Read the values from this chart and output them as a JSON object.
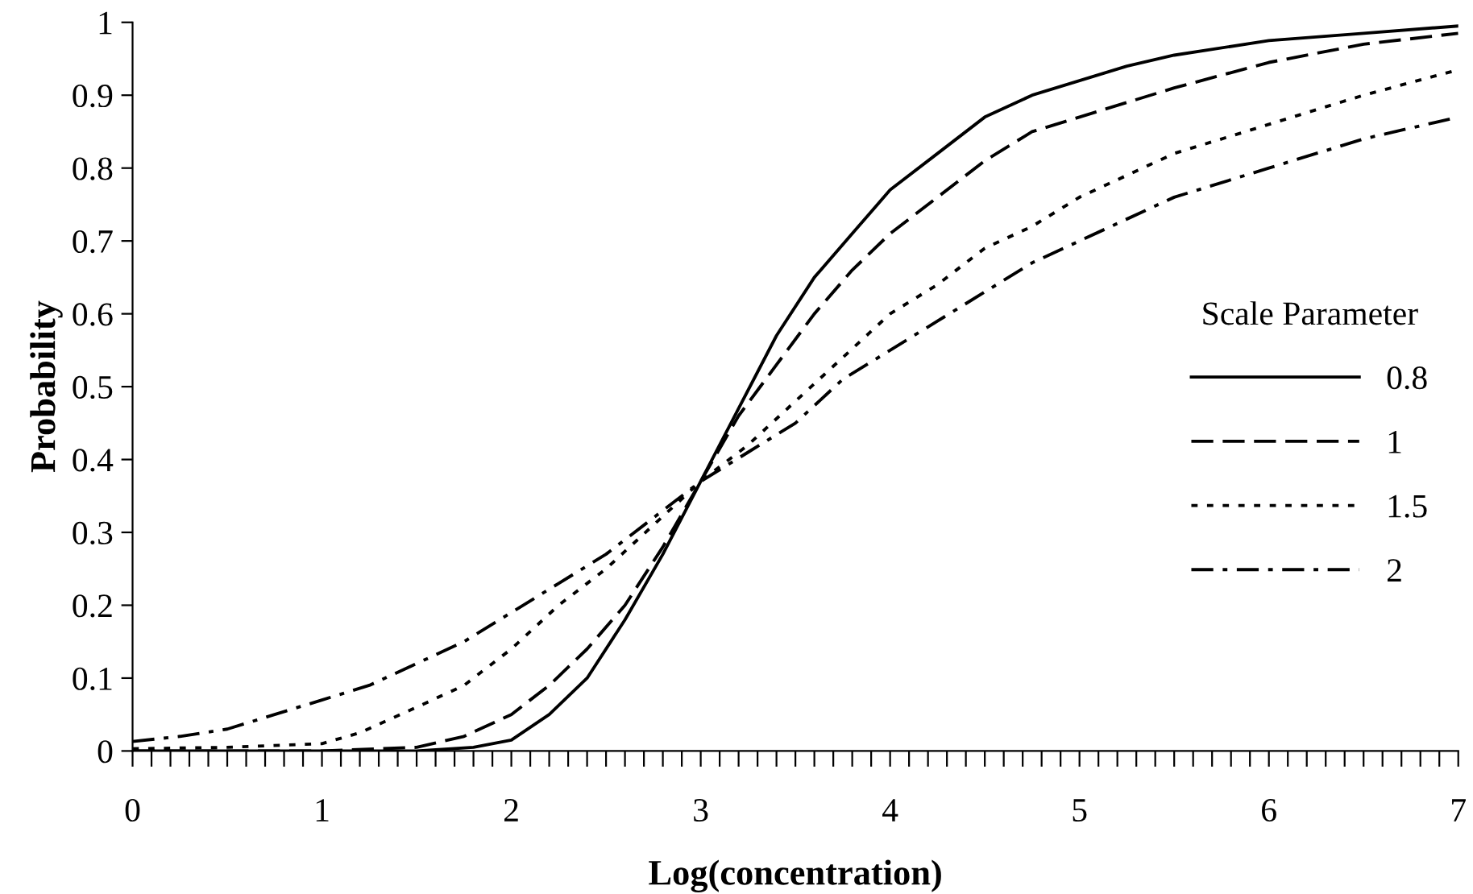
{
  "chart_data": {
    "type": "line",
    "xlabel": "Log(concentration)",
    "ylabel": "Probability",
    "legend_title": "Scale Parameter",
    "legend": "right",
    "grid": false,
    "marker": "none",
    "xlim": [
      0,
      7
    ],
    "xticks": [
      0,
      1,
      2,
      3,
      4,
      5,
      6,
      7
    ],
    "ylim": [
      0,
      1
    ],
    "yticks": [
      0,
      0.1,
      0.2,
      0.3,
      0.4,
      0.5,
      0.6,
      0.7,
      0.8,
      0.9,
      1
    ],
    "series": [
      {
        "name": "0.8",
        "color": "#000000",
        "line_style": "solid",
        "x": [
          0,
          0.5,
          1,
          1.5,
          1.8,
          2,
          2.2,
          2.4,
          2.6,
          2.8,
          3,
          3.2,
          3.4,
          3.6,
          3.8,
          4,
          4.25,
          4.5,
          4.75,
          5,
          5.25,
          5.5,
          6,
          6.5,
          7
        ],
        "values": [
          0,
          0,
          0,
          0,
          0.005,
          0.015,
          0.05,
          0.1,
          0.18,
          0.27,
          0.37,
          0.47,
          0.57,
          0.65,
          0.71,
          0.77,
          0.82,
          0.87,
          0.9,
          0.92,
          0.94,
          0.955,
          0.975,
          0.985,
          0.995
        ]
      },
      {
        "name": "1",
        "color": "#000000",
        "line_style": "dashed",
        "x": [
          0,
          1,
          1.5,
          1.75,
          2,
          2.2,
          2.4,
          2.6,
          2.8,
          3,
          3.2,
          3.4,
          3.6,
          3.8,
          4,
          4.25,
          4.5,
          4.75,
          5,
          5.5,
          6,
          6.5,
          7
        ],
        "values": [
          0,
          0,
          0.005,
          0.02,
          0.05,
          0.09,
          0.14,
          0.2,
          0.28,
          0.37,
          0.46,
          0.53,
          0.6,
          0.66,
          0.71,
          0.76,
          0.81,
          0.85,
          0.87,
          0.91,
          0.945,
          0.97,
          0.985
        ]
      },
      {
        "name": "1.5",
        "color": "#000000",
        "line_style": "dotted",
        "x": [
          0,
          0.5,
          1,
          1.2,
          1.5,
          1.75,
          2,
          2.25,
          2.5,
          2.75,
          3,
          3.25,
          3.5,
          3.75,
          4,
          4.25,
          4.5,
          4.75,
          5,
          5.5,
          6,
          6.5,
          7
        ],
        "values": [
          0.003,
          0.005,
          0.01,
          0.025,
          0.06,
          0.09,
          0.14,
          0.2,
          0.25,
          0.31,
          0.37,
          0.42,
          0.48,
          0.54,
          0.6,
          0.64,
          0.69,
          0.72,
          0.76,
          0.82,
          0.86,
          0.9,
          0.935
        ]
      },
      {
        "name": "2",
        "color": "#000000",
        "line_style": "dashdot",
        "x": [
          0,
          0.25,
          0.5,
          0.75,
          1,
          1.25,
          1.5,
          1.75,
          2,
          2.25,
          2.5,
          2.75,
          3,
          3.25,
          3.5,
          3.75,
          4,
          4.25,
          4.5,
          4.75,
          5,
          5.5,
          6,
          6.5,
          7
        ],
        "values": [
          0.013,
          0.02,
          0.03,
          0.05,
          0.07,
          0.09,
          0.12,
          0.15,
          0.19,
          0.23,
          0.27,
          0.32,
          0.37,
          0.41,
          0.45,
          0.51,
          0.55,
          0.59,
          0.63,
          0.67,
          0.7,
          0.76,
          0.8,
          0.84,
          0.87
        ]
      }
    ]
  }
}
